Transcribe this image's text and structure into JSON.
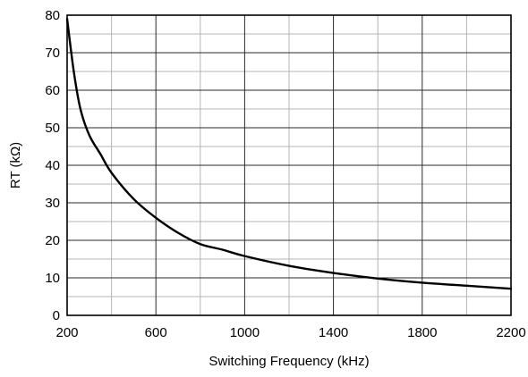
{
  "chart_data": {
    "type": "line",
    "title": "",
    "xlabel": "Switching Frequency (kHz)",
    "ylabel": "RT (kΩ)",
    "xlim": [
      200,
      2200
    ],
    "ylim": [
      0,
      80
    ],
    "x_major_ticks": [
      200,
      600,
      1000,
      1400,
      1800,
      2200
    ],
    "x_minor_step": 200,
    "y_major_ticks": [
      0,
      10,
      20,
      30,
      40,
      50,
      60,
      70,
      80
    ],
    "y_minor_step": 5,
    "grid": true,
    "legend": "none",
    "series": [
      {
        "color": "#000000",
        "x": [
          200,
          230,
          260,
          300,
          350,
          400,
          500,
          600,
          700,
          800,
          900,
          1000,
          1200,
          1400,
          1600,
          1800,
          2000,
          2200
        ],
        "y": [
          79,
          65,
          55,
          48,
          43,
          38,
          31,
          26,
          22,
          19,
          17.5,
          15.8,
          13.2,
          11.3,
          9.8,
          8.7,
          7.9,
          7.1
        ]
      }
    ]
  }
}
